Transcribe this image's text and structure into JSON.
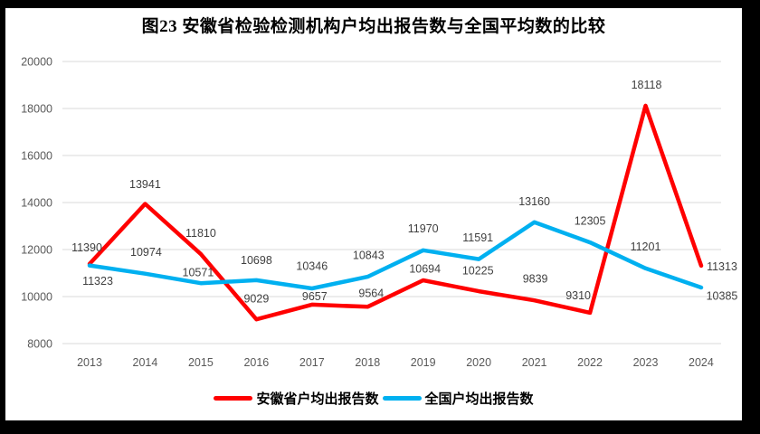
{
  "title": "图23 安徽省检验检测机构户均出报告数与全国平均数的比较",
  "colors": {
    "anhui_line": "#FF0000",
    "national_line": "#00B0F0",
    "gridline": "#D9D9D9",
    "axis_text": "#595959",
    "data_label_text": "#404040",
    "frame": "#000000",
    "background": "#FFFFFF"
  },
  "chart_data": {
    "type": "line",
    "title": "图23 安徽省检验检测机构户均出报告数与全国平均数的比较",
    "categories": [
      "2013",
      "2014",
      "2015",
      "2016",
      "2017",
      "2018",
      "2019",
      "2020",
      "2021",
      "2022",
      "2023",
      "2024"
    ],
    "series": [
      {
        "name": "安徽省户均出报告数",
        "color": "#FF0000",
        "values": [
          11390,
          13941,
          11810,
          9029,
          9657,
          9564,
          10694,
          10225,
          9839,
          9310,
          18118,
          11313
        ],
        "label_offsets": [
          [
            -3,
            -18
          ],
          [
            0,
            -22
          ],
          [
            0,
            -23
          ],
          [
            0,
            -23
          ],
          [
            3,
            -9
          ],
          [
            4,
            -15
          ],
          [
            2,
            -13
          ],
          [
            -1,
            -23
          ],
          [
            1,
            -24
          ],
          [
            -13,
            -19
          ],
          [
            1,
            -23
          ],
          [
            23,
            1
          ]
        ]
      },
      {
        "name": "全国户均出报告数",
        "color": "#00B0F0",
        "values": [
          11323,
          10974,
          10571,
          10698,
          10346,
          10843,
          11970,
          11591,
          13160,
          12305,
          11201,
          10385
        ],
        "label_offsets": [
          [
            9,
            17
          ],
          [
            1,
            -24
          ],
          [
            -3,
            -12
          ],
          [
            0,
            -22
          ],
          [
            0,
            -25
          ],
          [
            1,
            -24
          ],
          [
            0,
            -24
          ],
          [
            -1,
            -24
          ],
          [
            0,
            -23
          ],
          [
            0,
            -24
          ],
          [
            0,
            -24
          ],
          [
            23,
            9
          ]
        ]
      }
    ],
    "y_axis": {
      "ticks": [
        20000,
        18000,
        16000,
        14000,
        12000,
        10000,
        8000
      ],
      "min": 8000,
      "max": 20000
    },
    "xlabel": "",
    "ylabel": "",
    "grid": true,
    "data_labels": true,
    "legend_position": "bottom"
  },
  "legend": {
    "items": [
      {
        "label": "安徽省户均出报告数"
      },
      {
        "label": "全国户均出报告数"
      }
    ]
  }
}
